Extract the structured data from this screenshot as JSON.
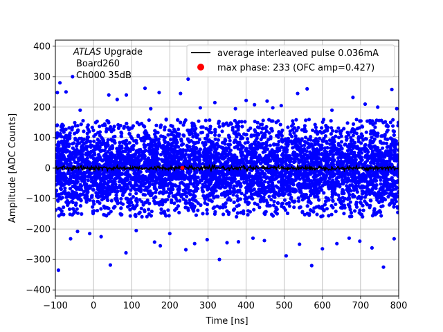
{
  "chart_data": {
    "type": "scatter",
    "xlabel": "Time [ns]",
    "ylabel": "Amplitude [ADC Counts]",
    "xlim": [
      -100,
      800
    ],
    "ylim": [
      -420,
      420
    ],
    "xticks": [
      -100,
      0,
      100,
      200,
      300,
      400,
      500,
      600,
      700,
      800
    ],
    "yticks": [
      -400,
      -300,
      -200,
      -100,
      0,
      100,
      200,
      300,
      400
    ],
    "xtick_labels": [
      "−100",
      "0",
      "100",
      "200",
      "300",
      "400",
      "500",
      "600",
      "700",
      "800"
    ],
    "ytick_labels": [
      "−400",
      "−300",
      "−200",
      "−100",
      "0",
      "100",
      "200",
      "300",
      "400"
    ],
    "grid": true,
    "legend_position": "top-right",
    "annotation": {
      "line1_italic": "ATLAS",
      "line1_rest": " Upgrade",
      "line2": "Board260",
      "line3": "Ch000 35dB"
    },
    "series": [
      {
        "name": "average interleaved pulse 0.036mA",
        "kind": "line",
        "color": "#000000",
        "description_values": "average pulse approximately 0 across the full range",
        "x": [
          -100,
          0,
          100,
          200,
          300,
          400,
          500,
          600,
          700,
          800
        ],
        "y": [
          0,
          0,
          0,
          0,
          0,
          0,
          0,
          0,
          0,
          0
        ]
      },
      {
        "name": "max phase: 233 (OFC amp=0.427)",
        "kind": "marker",
        "color": "#ff0000",
        "x": [
          233
        ],
        "y": [
          0.427
        ]
      },
      {
        "name": "",
        "kind": "scatter",
        "color": "#0000ff",
        "distribution": {
          "mean": 0,
          "core_sigma": 70,
          "core_limit": 160
        },
        "outliers": {
          "x": [
            -95,
            -88,
            -72,
            -55,
            -35,
            40,
            62,
            86,
            135,
            150,
            172,
            228,
            248,
            280,
            318,
            372,
            400,
            422,
            455,
            470,
            492,
            535,
            560,
            625,
            680,
            712,
            745,
            782,
            795,
            -92,
            -60,
            -42,
            -10,
            20,
            44,
            85,
            112,
            160,
            175,
            200,
            242,
            265,
            298,
            330,
            350,
            380,
            418,
            448,
            505,
            540,
            572,
            600,
            638,
            670,
            698,
            730,
            760,
            788
          ],
          "y": [
            248,
            280,
            250,
            300,
            190,
            240,
            225,
            240,
            262,
            195,
            248,
            245,
            292,
            198,
            215,
            195,
            222,
            208,
            220,
            198,
            205,
            245,
            260,
            190,
            232,
            210,
            200,
            258,
            195,
            -335,
            -232,
            -208,
            -215,
            -225,
            -318,
            -278,
            -205,
            -243,
            -255,
            -215,
            -268,
            -248,
            -235,
            -300,
            -245,
            -242,
            -230,
            -238,
            -288,
            -250,
            -320,
            -265,
            -248,
            -230,
            -240,
            -262,
            -325,
            -232
          ]
        }
      }
    ]
  }
}
